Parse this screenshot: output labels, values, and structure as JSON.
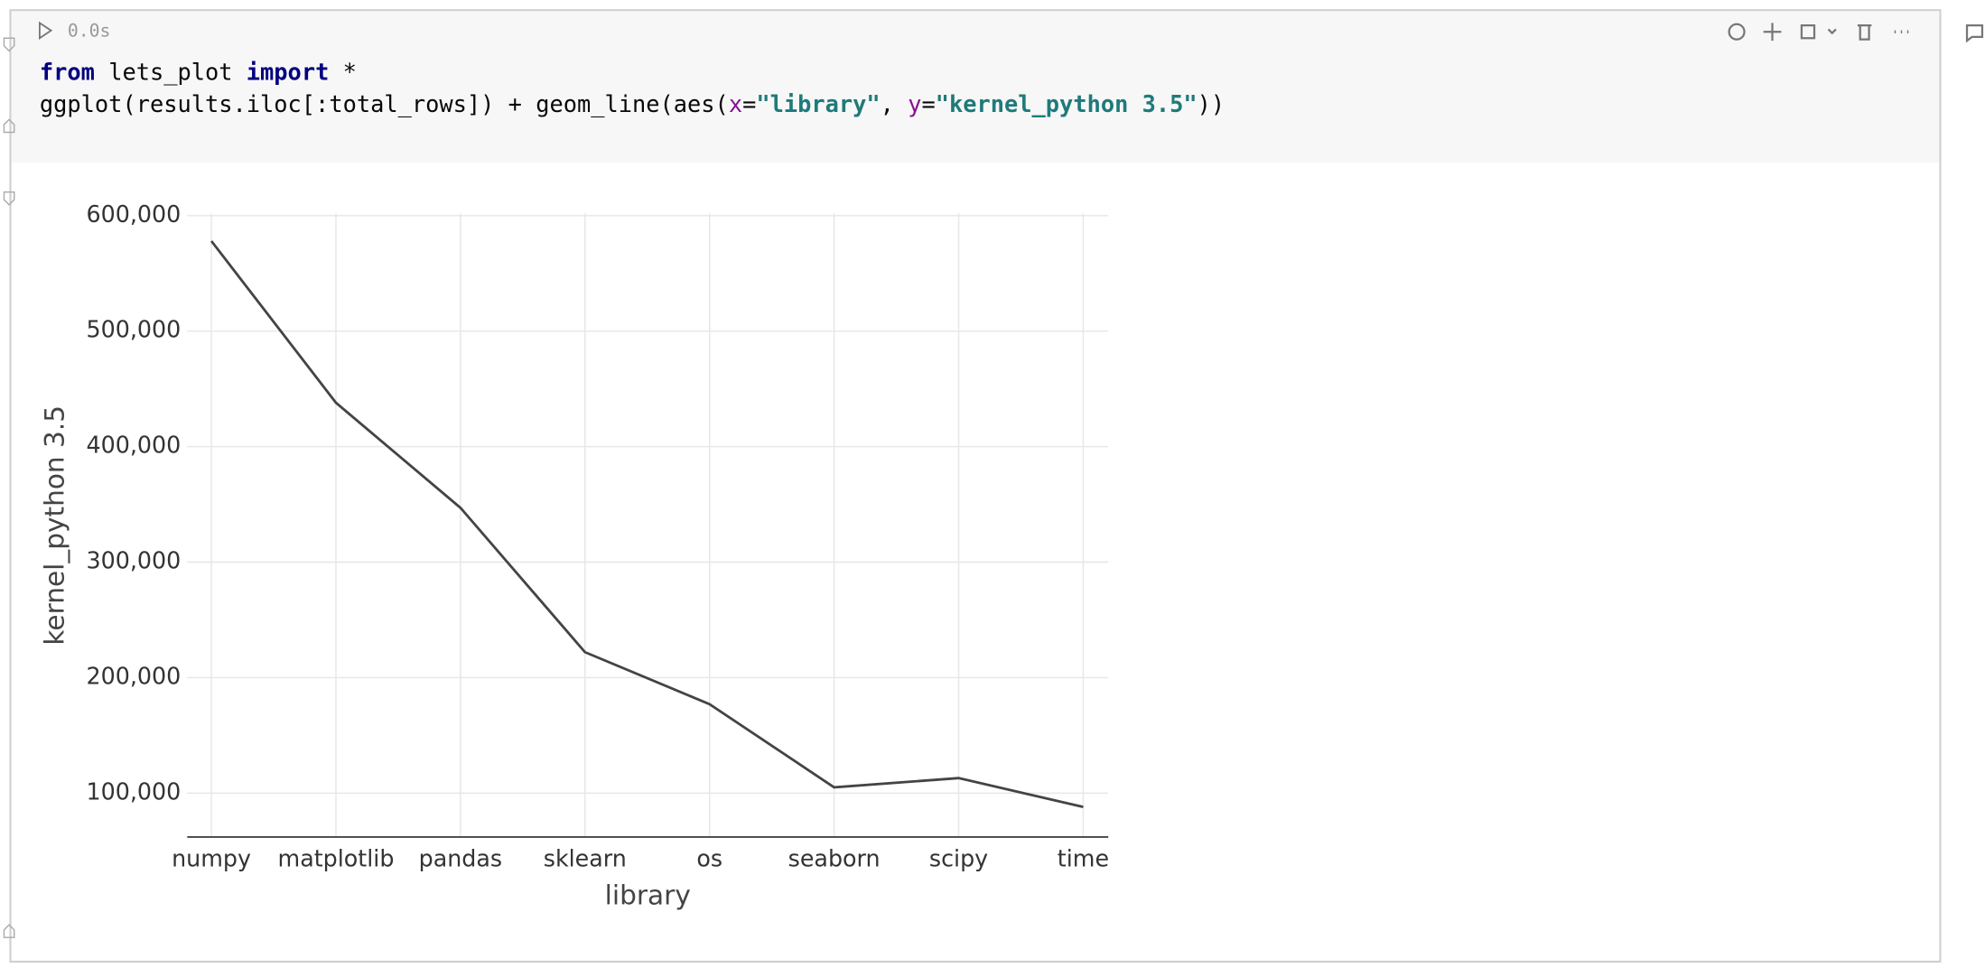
{
  "cell": {
    "exec_time": "0.0s",
    "code_lines": [
      [
        "from",
        " lets_plot ",
        "import",
        " *"
      ],
      [
        "ggplot(results.iloc[:total_rows]) + geom_line(aes(",
        "x",
        "=",
        "\"library\"",
        ", ",
        "y",
        "=",
        "\"kernel_python 3.5\"",
        "))"
      ]
    ]
  },
  "chart_data": {
    "type": "line",
    "x_label": "library",
    "y_label": "kernel_python 3.5",
    "categories": [
      "numpy",
      "matplotlib",
      "pandas",
      "sklearn",
      "os",
      "seaborn",
      "scipy",
      "time"
    ],
    "values": [
      578000,
      438000,
      347000,
      222000,
      177000,
      105000,
      113000,
      88000
    ],
    "color": "#444444",
    "ylim": [
      62000,
      602000
    ],
    "yticks": [
      {
        "value": 100000,
        "label": "100,000"
      },
      {
        "value": 200000,
        "label": "200,000"
      },
      {
        "value": 300000,
        "label": "300,000"
      },
      {
        "value": 400000,
        "label": "400,000"
      },
      {
        "value": 500000,
        "label": "500,000"
      },
      {
        "value": 600000,
        "label": "600,000"
      }
    ],
    "grid": true
  }
}
